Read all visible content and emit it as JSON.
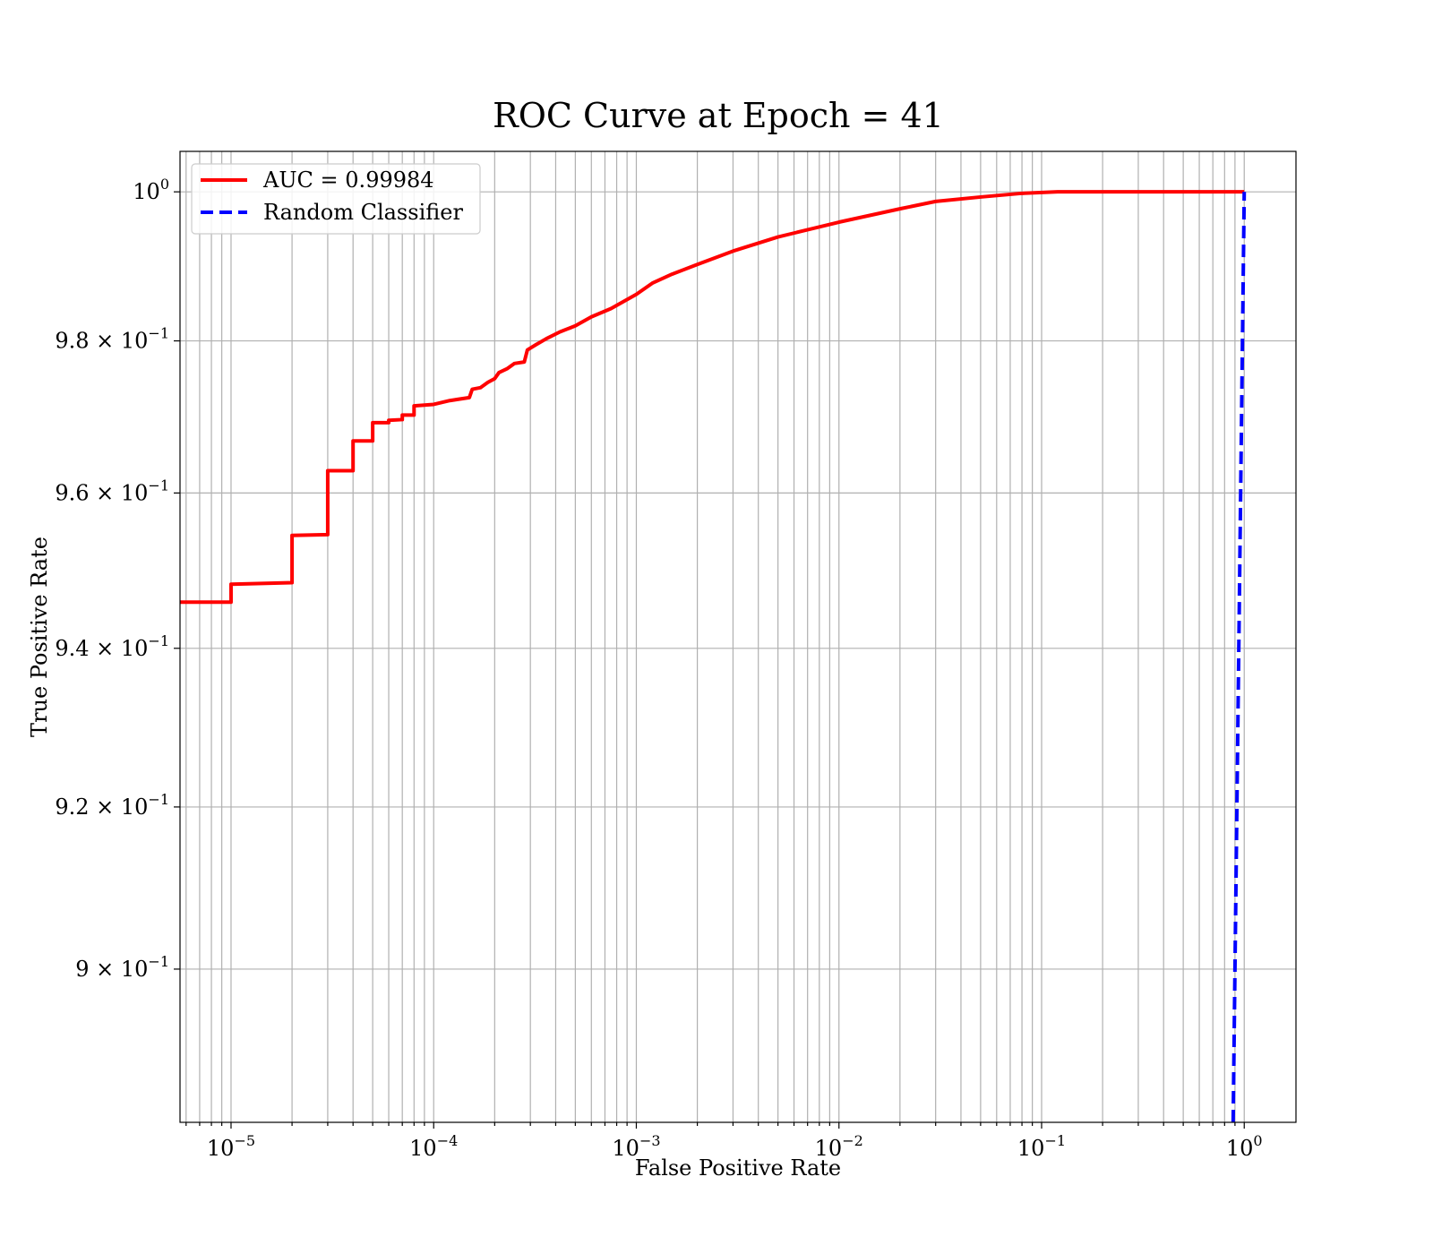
{
  "chart_data": {
    "type": "line",
    "title": "ROC Curve at Epoch = 41",
    "xlabel": "False Positive Rate",
    "ylabel": "True Positive Rate",
    "xscale": "log",
    "yscale": "log",
    "xlim": [
      5.6e-06,
      1.8
    ],
    "ylim": [
      0.8815,
      1.0055
    ],
    "grid": "on (major and minor)",
    "legend_position": "upper-left",
    "x_ticks": [
      {
        "value": 1e-05,
        "base": "10",
        "exp": "−5"
      },
      {
        "value": 0.0001,
        "base": "10",
        "exp": "−4"
      },
      {
        "value": 0.001,
        "base": "10",
        "exp": "−3"
      },
      {
        "value": 0.01,
        "base": "10",
        "exp": "−2"
      },
      {
        "value": 0.1,
        "base": "10",
        "exp": "−1"
      },
      {
        "value": 1,
        "base": "10",
        "exp": "0"
      }
    ],
    "y_ticks": [
      {
        "value": 0.9,
        "mant": "9 × 10",
        "exp": "−1"
      },
      {
        "value": 0.92,
        "mant": "9.2 × 10",
        "exp": "−1"
      },
      {
        "value": 0.94,
        "mant": "9.4 × 10",
        "exp": "−1"
      },
      {
        "value": 0.96,
        "mant": "9.6 × 10",
        "exp": "−1"
      },
      {
        "value": 0.98,
        "mant": "9.8 × 10",
        "exp": "−1"
      },
      {
        "value": 1.0,
        "mant": "10",
        "exp": "0"
      }
    ],
    "series": [
      {
        "name": "AUC = 0.99984",
        "color": "#ff0000",
        "style": "solid",
        "points": [
          [
            5.6e-06,
            0.9459
          ],
          [
            1e-05,
            0.9459
          ],
          [
            1e-05,
            0.9482
          ],
          [
            2e-05,
            0.9484
          ],
          [
            2e-05,
            0.9545
          ],
          [
            3e-05,
            0.9546
          ],
          [
            3e-05,
            0.9629
          ],
          [
            4e-05,
            0.9629
          ],
          [
            4e-05,
            0.9668
          ],
          [
            5e-05,
            0.9668
          ],
          [
            5e-05,
            0.9692
          ],
          [
            6e-05,
            0.9692
          ],
          [
            6e-05,
            0.9695
          ],
          [
            7e-05,
            0.9696
          ],
          [
            7e-05,
            0.9702
          ],
          [
            8e-05,
            0.9702
          ],
          [
            8e-05,
            0.9714
          ],
          [
            0.0001,
            0.9716
          ],
          [
            0.00012,
            0.9721
          ],
          [
            0.00015,
            0.9725
          ],
          [
            0.000155,
            0.9736
          ],
          [
            0.00017,
            0.9738
          ],
          [
            0.000185,
            0.9745
          ],
          [
            0.0002,
            0.975
          ],
          [
            0.00021,
            0.9758
          ],
          [
            0.00023,
            0.9763
          ],
          [
            0.00025,
            0.977
          ],
          [
            0.00028,
            0.9772
          ],
          [
            0.00029,
            0.9788
          ],
          [
            0.00032,
            0.9795
          ],
          [
            0.00036,
            0.9803
          ],
          [
            0.00042,
            0.9812
          ],
          [
            0.0005,
            0.982
          ],
          [
            0.0006,
            0.9832
          ],
          [
            0.00075,
            0.9843
          ],
          [
            0.001,
            0.9862
          ],
          [
            0.0012,
            0.9877
          ],
          [
            0.0015,
            0.9889
          ],
          [
            0.002,
            0.9902
          ],
          [
            0.003,
            0.992
          ],
          [
            0.005,
            0.9939
          ],
          [
            0.01,
            0.9959
          ],
          [
            0.02,
            0.9977
          ],
          [
            0.03,
            0.9987
          ],
          [
            0.05,
            0.9993
          ],
          [
            0.08,
            0.9998
          ],
          [
            0.12,
            1.0
          ],
          [
            1.0,
            1.0
          ]
        ]
      },
      {
        "name": "Random Classifier",
        "color": "#0000ff",
        "style": "dashed",
        "points": [
          [
            0.8815,
            0.8815
          ],
          [
            1.0,
            1.0
          ]
        ]
      }
    ]
  }
}
